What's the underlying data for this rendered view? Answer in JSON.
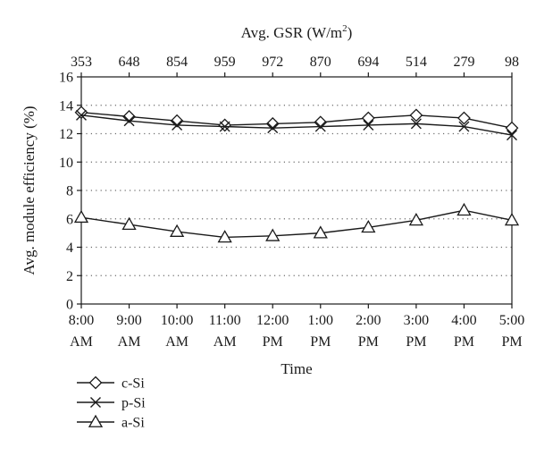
{
  "chart_data": {
    "type": "line",
    "title": "",
    "xlabel": "Time",
    "ylabel": "Avg. module efficiency (%)",
    "x2label_prefix": "Avg. GSR (W/m",
    "x2label_sup": "2",
    "x2label_suffix": ")",
    "categories": [
      [
        "8:00",
        "AM"
      ],
      [
        "9:00",
        "AM"
      ],
      [
        "10:00",
        "AM"
      ],
      [
        "11:00",
        "AM"
      ],
      [
        "12:00",
        "PM"
      ],
      [
        "1:00",
        "PM"
      ],
      [
        "2:00",
        "PM"
      ],
      [
        "3:00",
        "PM"
      ],
      [
        "4:00",
        "PM"
      ],
      [
        "5:00",
        "PM"
      ]
    ],
    "top_axis_values": [
      "353",
      "648",
      "854",
      "959",
      "972",
      "870",
      "694",
      "514",
      "279",
      "98"
    ],
    "ylim": [
      0,
      16
    ],
    "yticks": [
      0,
      2,
      4,
      6,
      8,
      10,
      12,
      14,
      16
    ],
    "grid": "horizontal dotted",
    "legend_position": "bottom-left",
    "series": [
      {
        "name": "c-Si",
        "marker": "diamond",
        "values": [
          13.5,
          13.2,
          12.9,
          12.6,
          12.7,
          12.8,
          13.1,
          13.3,
          13.1,
          12.4
        ]
      },
      {
        "name": "p-Si",
        "marker": "x",
        "values": [
          13.3,
          12.9,
          12.6,
          12.5,
          12.4,
          12.5,
          12.6,
          12.7,
          12.5,
          11.9
        ]
      },
      {
        "name": "a-Si",
        "marker": "triangle",
        "values": [
          6.1,
          5.6,
          5.1,
          4.7,
          4.8,
          5.0,
          5.4,
          5.9,
          6.6,
          5.9
        ]
      }
    ]
  }
}
